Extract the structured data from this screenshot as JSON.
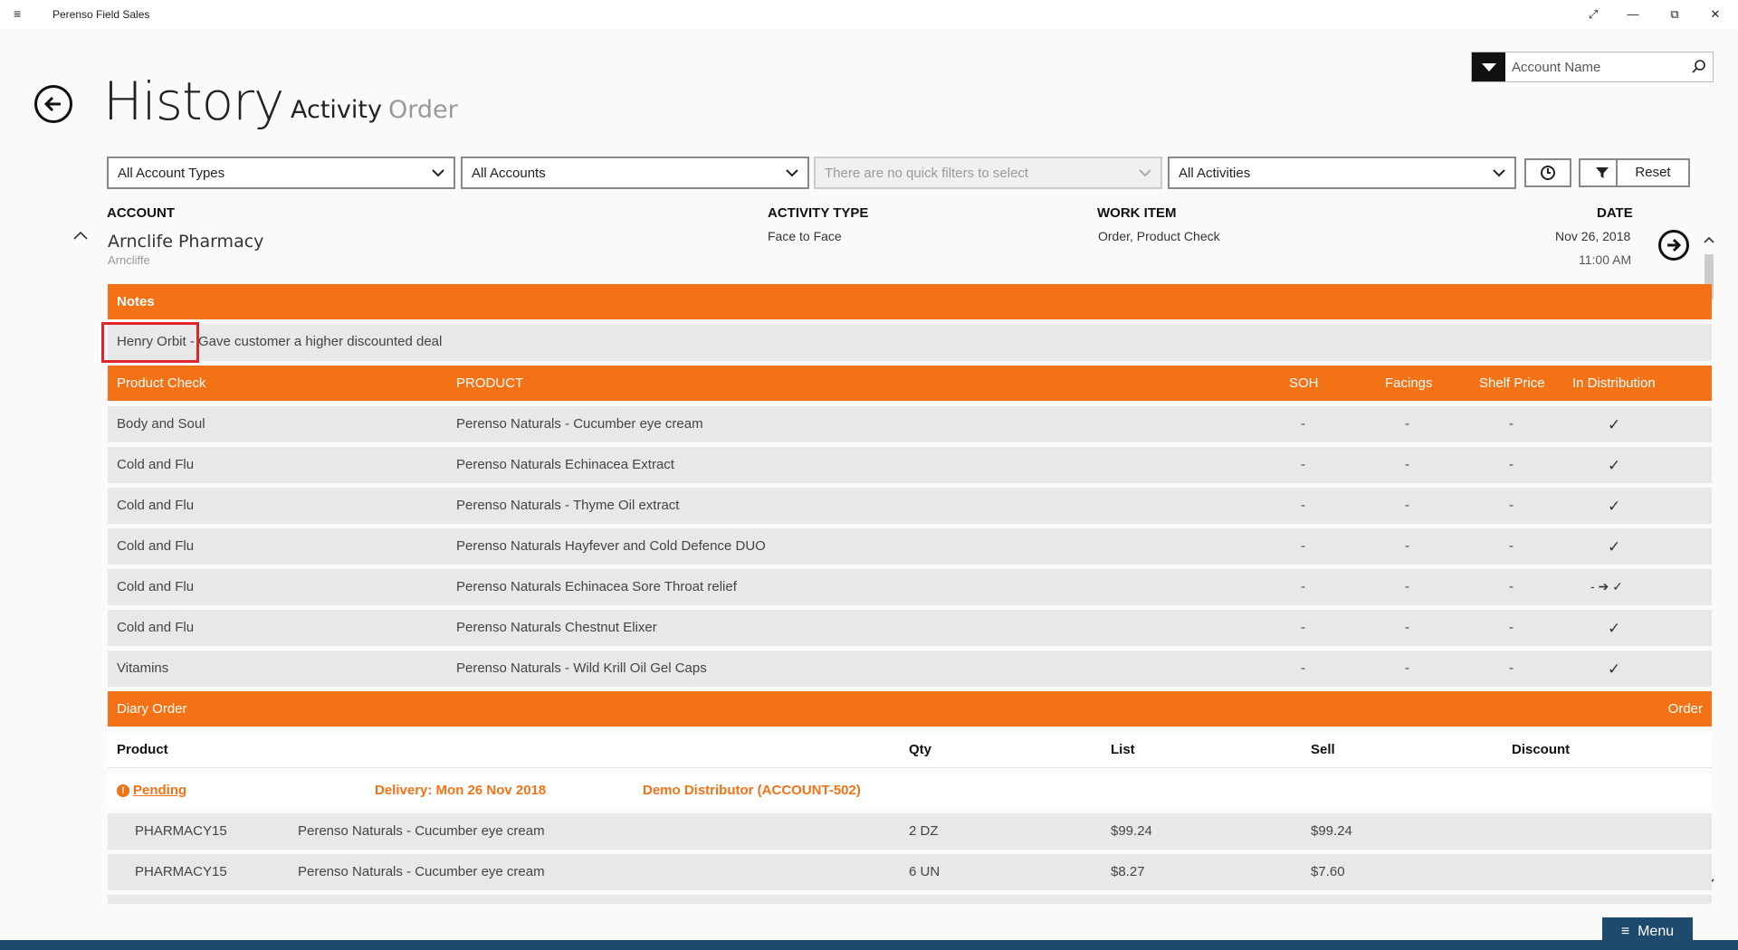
{
  "app": {
    "title": "Perenso Field Sales"
  },
  "window": {
    "minimize": "—",
    "restore": "⧉",
    "close": "✕",
    "expand": "⤢",
    "hamburger": "≡"
  },
  "header": {
    "title": "History",
    "tabs": [
      {
        "label": "Activity",
        "active": true
      },
      {
        "label": "Order",
        "active": false
      }
    ],
    "search": {
      "placeholder": "Account Name"
    }
  },
  "filters": {
    "account_types": "All Account Types",
    "accounts": "All Accounts",
    "quick_filters": "There are no quick filters to select",
    "activities": "All Activities",
    "reset_label": "Reset"
  },
  "columns": {
    "account": "ACCOUNT",
    "activity_type": "ACTIVITY TYPE",
    "work_item": "WORK ITEM",
    "date": "DATE"
  },
  "entry": {
    "account_name": "Arnclife Pharmacy",
    "account_suburb": "Arncliffe",
    "activity_type": "Face to Face",
    "work_item": "Order, Product Check",
    "date": "Nov 26, 2018",
    "time": "11:00 AM"
  },
  "notes": {
    "header": "Notes",
    "text": "Henry Orbit - Gave customer a higher discounted deal"
  },
  "product_check": {
    "header": "Product Check",
    "columns": {
      "product": "PRODUCT",
      "soh": "SOH",
      "facings": "Facings",
      "shelf_price": "Shelf Price",
      "in_distribution": "In Distribution"
    },
    "rows": [
      {
        "category": "Body and Soul",
        "product": "Perenso Naturals - Cucumber eye cream",
        "soh": "-",
        "facings": "-",
        "shelf_price": "-",
        "dist": "✓"
      },
      {
        "category": "Cold and Flu",
        "product": "Perenso Naturals Echinacea Extract",
        "soh": "-",
        "facings": "-",
        "shelf_price": "-",
        "dist": "✓"
      },
      {
        "category": "Cold and Flu",
        "product": "Perenso Naturals - Thyme Oil extract",
        "soh": "-",
        "facings": "-",
        "shelf_price": "-",
        "dist": "✓"
      },
      {
        "category": "Cold and Flu",
        "product": "Perenso Naturals Hayfever and Cold Defence DUO",
        "soh": "-",
        "facings": "-",
        "shelf_price": "-",
        "dist": "✓"
      },
      {
        "category": "Cold and Flu",
        "product": "Perenso Naturals Echinacea Sore Throat relief",
        "soh": "-",
        "facings": "-",
        "shelf_price": "-",
        "dist": "- ➔ ✓"
      },
      {
        "category": "Cold and Flu",
        "product": "Perenso Naturals Chestnut Elixer",
        "soh": "-",
        "facings": "-",
        "shelf_price": "-",
        "dist": "✓"
      },
      {
        "category": "Vitamins",
        "product": "Perenso Naturals - Wild Krill Oil Gel Caps",
        "soh": "-",
        "facings": "-",
        "shelf_price": "-",
        "dist": "✓"
      }
    ]
  },
  "diary_order": {
    "header": "Diary Order",
    "order_link": "Order",
    "columns": {
      "product": "Product",
      "qty": "Qty",
      "list": "List",
      "sell": "Sell",
      "discount": "Discount"
    },
    "status": "Pending",
    "delivery": "Delivery: Mon 26 Nov 2018",
    "distributor": "Demo Distributor (ACCOUNT-502)",
    "rows": [
      {
        "code": "PHARMACY15",
        "product": "Perenso Naturals - Cucumber eye cream",
        "qty": "2 DZ",
        "list": "$99.24",
        "sell": "$99.24"
      },
      {
        "code": "PHARMACY15",
        "product": "Perenso Naturals - Cucumber eye cream",
        "qty": "6 UN",
        "list": "$8.27",
        "sell": "$7.60"
      }
    ]
  },
  "footer": {
    "menu_label": "Menu",
    "menu_icon": "≡"
  },
  "colors": {
    "accent": "#f47216",
    "nav": "#1e4a6e",
    "highlight": "#e0262c"
  }
}
